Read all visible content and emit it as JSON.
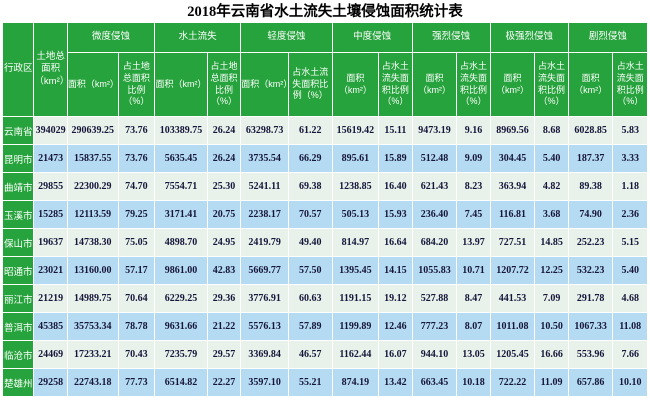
{
  "title": "2018年云南省水土流失土壤侵蚀面积统计表",
  "colors": {
    "header_green": "#26a33c",
    "row_pale_green": "#e8f1ea",
    "row_light_blue": "#b5dbf2",
    "header_text": "#ffffff",
    "data_text": "#16163a",
    "grid_line": "#ffffff",
    "page_background": "#ffffff"
  },
  "chart_data": {
    "type": "table",
    "title": "2018年云南省水土流失土壤侵蚀面积统计表",
    "corner": {
      "region_header": "行政区",
      "total_area_header": "土地总面积（km²）"
    },
    "column_groups": [
      {
        "label": "微度侵蚀",
        "sub": [
          "面积（km²）",
          "占土地总面积比例（%）"
        ]
      },
      {
        "label": "水土流失",
        "sub": [
          "面积（km²）",
          "占土地总面积比例（%）"
        ]
      },
      {
        "label": "轻度侵蚀",
        "sub": [
          "面积（km²）",
          "占水土流失面积比例（%）"
        ]
      },
      {
        "label": "中度侵蚀",
        "sub": [
          "面积（km²）",
          "占水土流失面积比例（%）"
        ]
      },
      {
        "label": "强烈侵蚀",
        "sub": [
          "面积（km²）",
          "占水土流失面积比例（%）"
        ]
      },
      {
        "label": "极强烈侵蚀",
        "sub": [
          "面积（km²）",
          "占水土流失面积比例（%）"
        ]
      },
      {
        "label": "剧烈侵蚀",
        "sub": [
          "面积（km²）",
          "占水土流失面积比例（%）"
        ]
      }
    ],
    "leaf_columns": [
      "行政区",
      "土地总面积（km²）",
      "微度侵蚀 面积（km²）",
      "微度侵蚀 占土地总面积比例（%）",
      "水土流失 面积（km²）",
      "水土流失 占土地总面积比例（%）",
      "轻度侵蚀 面积（km²）",
      "轻度侵蚀 占水土流失面积比例（%）",
      "中度侵蚀 面积（km²）",
      "中度侵蚀 占水土流失面积比例（%）",
      "强烈侵蚀 面积（km²）",
      "强烈侵蚀 占水土流失面积比例（%）",
      "极强烈侵蚀 面积（km²）",
      "极强烈侵蚀 占水土流失面积比例（%）",
      "剧烈侵蚀 面积（km²）",
      "剧烈侵蚀 占水土流失面积比例（%）"
    ],
    "rows": [
      {
        "region": "云南省",
        "values": [
          "394029",
          "290639.25",
          "73.76",
          "103389.75",
          "26.24",
          "63298.73",
          "61.22",
          "15619.42",
          "15.11",
          "9473.19",
          "9.16",
          "8969.56",
          "8.68",
          "6028.85",
          "5.83"
        ]
      },
      {
        "region": "昆明市",
        "values": [
          "21473",
          "15837.55",
          "73.76",
          "5635.45",
          "26.24",
          "3735.54",
          "66.29",
          "895.61",
          "15.89",
          "512.48",
          "9.09",
          "304.45",
          "5.40",
          "187.37",
          "3.33"
        ]
      },
      {
        "region": "曲靖市",
        "values": [
          "29855",
          "22300.29",
          "74.70",
          "7554.71",
          "25.30",
          "5241.11",
          "69.38",
          "1238.85",
          "16.40",
          "621.43",
          "8.23",
          "363.94",
          "4.82",
          "89.38",
          "1.18"
        ]
      },
      {
        "region": "玉溪市",
        "values": [
          "15285",
          "12113.59",
          "79.25",
          "3171.41",
          "20.75",
          "2238.17",
          "70.57",
          "505.13",
          "15.93",
          "236.40",
          "7.45",
          "116.81",
          "3.68",
          "74.90",
          "2.36"
        ]
      },
      {
        "region": "保山市",
        "values": [
          "19637",
          "14738.30",
          "75.05",
          "4898.70",
          "24.95",
          "2419.79",
          "49.40",
          "814.97",
          "16.64",
          "684.20",
          "13.97",
          "727.51",
          "14.85",
          "252.23",
          "5.15"
        ]
      },
      {
        "region": "昭通市",
        "values": [
          "23021",
          "13160.00",
          "57.17",
          "9861.00",
          "42.83",
          "5669.77",
          "57.50",
          "1395.45",
          "14.15",
          "1055.83",
          "10.71",
          "1207.72",
          "12.25",
          "532.23",
          "5.40"
        ]
      },
      {
        "region": "丽江市",
        "values": [
          "21219",
          "14989.75",
          "70.64",
          "6229.25",
          "29.36",
          "3776.91",
          "60.63",
          "1191.15",
          "19.12",
          "527.88",
          "8.47",
          "441.53",
          "7.09",
          "291.78",
          "4.68"
        ]
      },
      {
        "region": "普洱市",
        "values": [
          "45385",
          "35753.34",
          "78.78",
          "9631.66",
          "21.22",
          "5576.13",
          "57.89",
          "1199.89",
          "12.46",
          "777.23",
          "8.07",
          "1011.08",
          "10.50",
          "1067.33",
          "11.08"
        ]
      },
      {
        "region": "临沧市",
        "values": [
          "24469",
          "17233.21",
          "70.43",
          "7235.79",
          "29.57",
          "3369.84",
          "46.57",
          "1162.44",
          "16.07",
          "944.10",
          "13.05",
          "1205.45",
          "16.66",
          "553.96",
          "7.66"
        ]
      },
      {
        "region": "楚雄州",
        "values": [
          "29258",
          "22743.18",
          "77.73",
          "6514.82",
          "22.27",
          "3597.10",
          "55.21",
          "874.19",
          "13.42",
          "663.45",
          "10.18",
          "722.22",
          "11.09",
          "657.86",
          "10.10"
        ]
      }
    ]
  }
}
